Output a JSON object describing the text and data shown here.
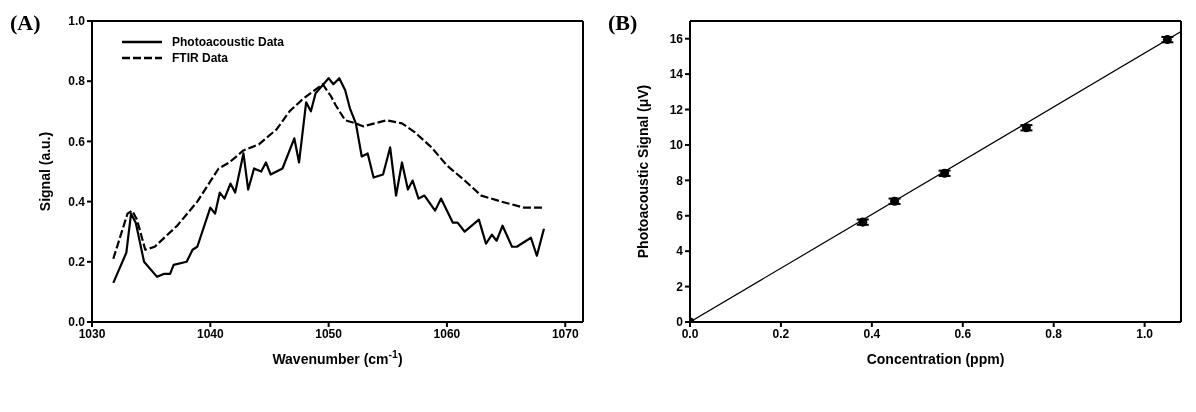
{
  "chart_data": [
    {
      "type": "line",
      "xlabel": "Wavenumber (cm$^{-1}$)",
      "ylabel": "Signal (a.u.)",
      "annotations": [
        "(A)"
      ],
      "xlim": [
        1030,
        1071.5
      ],
      "xticks": [
        1030,
        1040,
        1050,
        1060,
        1070
      ],
      "ylim": [
        0,
        1
      ],
      "yticks": [
        {
          "value": 0,
          "label": "0.0"
        },
        {
          "value": 0.2,
          "label": "0.2"
        },
        {
          "value": 0.4,
          "label": "0.4"
        },
        {
          "value": 0.6,
          "label": "0.6"
        },
        {
          "value": 0.8,
          "label": "0.8"
        },
        {
          "value": 1,
          "label": "1.0"
        }
      ],
      "legend": "top left",
      "grid": false,
      "series": [
        {
          "name": "Photoacoustic Data",
          "color": "#000000",
          "line_style": "solid",
          "x": [
            1031.8,
            1032.9,
            1033.3,
            1033.7,
            1034.4,
            1035.5,
            1036.1,
            1036.6,
            1036.9,
            1038.0,
            1038.5,
            1038.9,
            1040.0,
            1040.4,
            1040.8,
            1041.2,
            1041.7,
            1042.1,
            1042.8,
            1043.2,
            1043.7,
            1044.3,
            1044.7,
            1045.1,
            1046.1,
            1047.1,
            1047.5,
            1048.1,
            1048.5,
            1048.9,
            1050.0,
            1050.4,
            1050.9,
            1051.4,
            1051.8,
            1052.3,
            1052.8,
            1053.3,
            1053.8,
            1054.6,
            1055.2,
            1055.7,
            1056.2,
            1056.7,
            1057.1,
            1057.6,
            1058.1,
            1059.0,
            1059.5,
            1060.5,
            1060.9,
            1061.5,
            1062.7,
            1063.3,
            1063.8,
            1064.2,
            1064.7,
            1065.5,
            1065.9,
            1067.1,
            1067.6,
            1068.2
          ],
          "values": [
            0.13,
            0.23,
            0.36,
            0.33,
            0.2,
            0.15,
            0.16,
            0.16,
            0.19,
            0.2,
            0.24,
            0.25,
            0.38,
            0.36,
            0.43,
            0.41,
            0.46,
            0.43,
            0.56,
            0.44,
            0.51,
            0.5,
            0.53,
            0.49,
            0.51,
            0.61,
            0.53,
            0.73,
            0.7,
            0.76,
            0.81,
            0.79,
            0.81,
            0.77,
            0.71,
            0.66,
            0.55,
            0.56,
            0.48,
            0.49,
            0.58,
            0.42,
            0.53,
            0.44,
            0.47,
            0.41,
            0.42,
            0.37,
            0.41,
            0.33,
            0.33,
            0.3,
            0.34,
            0.26,
            0.29,
            0.27,
            0.32,
            0.25,
            0.25,
            0.28,
            0.22,
            0.31
          ]
        },
        {
          "name": "FTIR Data",
          "color": "#000000",
          "line_style": "dashed",
          "x": [
            1031.8,
            1033.0,
            1033.4,
            1033.8,
            1034.5,
            1035.3,
            1037.2,
            1038.9,
            1040.7,
            1041.6,
            1042.8,
            1044.1,
            1045.6,
            1046.7,
            1047.8,
            1049.5,
            1050.2,
            1050.6,
            1051.4,
            1052.3,
            1052.9,
            1053.9,
            1054.9,
            1056.2,
            1057.3,
            1058.7,
            1060.0,
            1061.5,
            1062.9,
            1064.6,
            1066.5,
            1068.2
          ],
          "values": [
            0.21,
            0.36,
            0.37,
            0.34,
            0.24,
            0.25,
            0.32,
            0.4,
            0.51,
            0.53,
            0.57,
            0.59,
            0.64,
            0.7,
            0.74,
            0.79,
            0.75,
            0.72,
            0.67,
            0.66,
            0.65,
            0.66,
            0.67,
            0.66,
            0.63,
            0.58,
            0.52,
            0.47,
            0.42,
            0.4,
            0.38,
            0.38
          ]
        }
      ]
    },
    {
      "type": "scatter",
      "xlabel": "Concentration (ppm)",
      "ylabel": "Photoacoustic Signal (μV)",
      "annotations": [
        "(B)"
      ],
      "xlim": [
        0,
        1.08
      ],
      "xticks": [
        {
          "value": 0,
          "label": "0.0"
        },
        {
          "value": 0.2,
          "label": "0.2"
        },
        {
          "value": 0.4,
          "label": "0.4"
        },
        {
          "value": 0.6,
          "label": "0.6"
        },
        {
          "value": 0.8,
          "label": "0.8"
        },
        {
          "value": 1,
          "label": "1.0"
        }
      ],
      "ylim": [
        0,
        17
      ],
      "yticks": [
        0,
        2,
        4,
        6,
        8,
        10,
        12,
        14,
        16
      ],
      "grid": false,
      "series": [
        {
          "color": "#000000",
          "marker": "circle",
          "x": [
            0,
            0.38,
            0.45,
            0.56,
            0.74,
            1.05
          ],
          "values": [
            0,
            5.64,
            6.82,
            8.4,
            10.97,
            15.95
          ],
          "errors": [
            null,
            0.15,
            0.15,
            0.15,
            0.15,
            0.15
          ]
        },
        {
          "type": "line",
          "color": "#000000",
          "line_style": "solid",
          "x": [
            0,
            1.08
          ],
          "values": [
            0,
            16.4
          ]
        }
      ]
    }
  ]
}
